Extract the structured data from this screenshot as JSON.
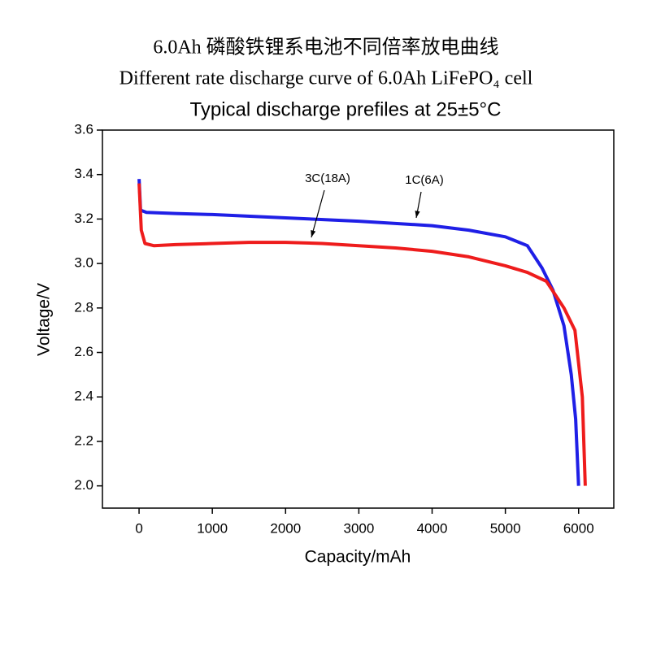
{
  "chart_data": {
    "type": "line",
    "title_cn": "6.0Ah 磷酸铁锂系电池不同倍率放电曲线",
    "title_en": "Different rate discharge curve of 6.0Ah LiFePO₄ cell",
    "title": "Typical discharge prefiles at 25±5°C",
    "x_label": "Capacity/mAh",
    "y_label": "Voltage/V",
    "xlim": [
      -500,
      6480
    ],
    "ylim": [
      1.9,
      3.6
    ],
    "xticks": [
      0,
      1000,
      2000,
      3000,
      4000,
      5000,
      6000
    ],
    "yticks": [
      {
        "value": 2.0,
        "label": "2.0"
      },
      2.2,
      2.4,
      2.6,
      2.8,
      {
        "value": 3.0,
        "label": "3.0"
      },
      3.2,
      3.4,
      3.6
    ],
    "series": [
      {
        "name": "1C(6A)",
        "color": "#1f1fe6",
        "x": [
          0,
          20,
          100,
          500,
          1000,
          2000,
          3000,
          4000,
          4500,
          5000,
          5300,
          5500,
          5650,
          5800,
          5900,
          5960,
          6000
        ],
        "values": [
          3.38,
          3.24,
          3.23,
          3.225,
          3.22,
          3.205,
          3.19,
          3.17,
          3.15,
          3.12,
          3.08,
          2.98,
          2.88,
          2.72,
          2.5,
          2.3,
          2.0
        ]
      },
      {
        "name": "3C(18A)",
        "color": "#ee1c1c",
        "x": [
          0,
          30,
          80,
          200,
          500,
          1000,
          1500,
          2000,
          2500,
          3000,
          3500,
          4000,
          4500,
          5000,
          5300,
          5560,
          5800,
          5950,
          6050,
          6090
        ],
        "values": [
          3.36,
          3.15,
          3.09,
          3.08,
          3.085,
          3.09,
          3.095,
          3.095,
          3.09,
          3.08,
          3.07,
          3.055,
          3.03,
          2.99,
          2.96,
          2.92,
          2.8,
          2.7,
          2.4,
          2.0
        ]
      }
    ]
  }
}
